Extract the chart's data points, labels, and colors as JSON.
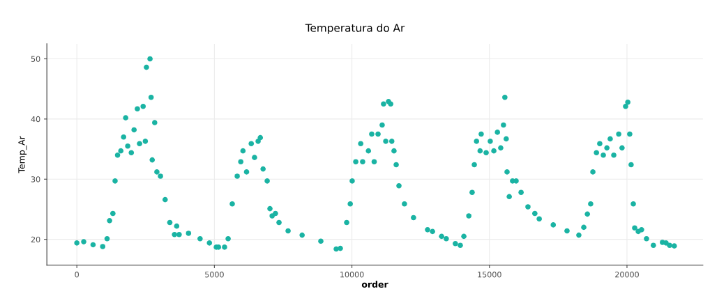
{
  "chart_data": {
    "type": "scatter",
    "title": "Temperatura do Ar",
    "xlabel": "order",
    "ylabel": "Temp_Ar",
    "xlim": [
      -1090,
      22760
    ],
    "ylim": [
      15.7,
      52.5
    ],
    "xticks": [
      0,
      5000,
      10000,
      15000,
      20000
    ],
    "yticks": [
      20,
      30,
      40,
      50
    ],
    "grid": true,
    "marker": "circle",
    "series": [
      {
        "color": "#1ab3a3",
        "x": [
          0,
          250,
          590,
          940,
          1100,
          1190,
          1310,
          1390,
          1480,
          1600,
          1700,
          1775,
          1850,
          1980,
          2080,
          2200,
          2280,
          2410,
          2490,
          2530,
          2660,
          2700,
          2740,
          2830,
          2910,
          3040,
          3210,
          3380,
          3550,
          3630,
          3720,
          4060,
          4480,
          4820,
          5070,
          5150,
          5370,
          5500,
          5650,
          5830,
          5960,
          6040,
          6170,
          6340,
          6460,
          6590,
          6670,
          6770,
          6920,
          7020,
          7100,
          7220,
          7350,
          7680,
          8190,
          8870,
          9430,
          9580,
          9810,
          9940,
          10010,
          10140,
          10320,
          10390,
          10600,
          10720,
          10810,
          10950,
          11100,
          11150,
          11230,
          11330,
          11410,
          11450,
          11530,
          11610,
          11710,
          11910,
          12240,
          12750,
          12930,
          13260,
          13430,
          13760,
          13940,
          14070,
          14250,
          14370,
          14450,
          14530,
          14660,
          14700,
          14880,
          15030,
          15160,
          15290,
          15410,
          15510,
          15560,
          15610,
          15640,
          15720,
          15840,
          15970,
          16150,
          16400,
          16650,
          16810,
          17320,
          17820,
          18250,
          18430,
          18560,
          18680,
          18760,
          18890,
          19010,
          19140,
          19270,
          19390,
          19520,
          19700,
          19820,
          19950,
          20030,
          20100,
          20150,
          20230,
          20280,
          20410,
          20530,
          20710,
          20960,
          21290,
          21420,
          21550,
          21720
        ],
        "values": [
          19.4,
          19.6,
          19.1,
          18.8,
          20.1,
          23.1,
          24.3,
          29.7,
          34.0,
          34.7,
          37.0,
          40.2,
          35.5,
          34.4,
          38.2,
          41.7,
          35.9,
          42.1,
          36.3,
          48.6,
          50.0,
          43.6,
          33.2,
          39.4,
          31.2,
          30.5,
          26.6,
          22.8,
          20.8,
          22.2,
          20.8,
          21.0,
          20.1,
          19.4,
          18.7,
          18.7,
          18.7,
          20.1,
          25.9,
          30.5,
          32.9,
          34.7,
          31.2,
          35.9,
          33.6,
          36.3,
          36.9,
          31.7,
          29.7,
          25.1,
          23.9,
          24.3,
          22.8,
          21.4,
          20.7,
          19.7,
          18.4,
          18.5,
          22.8,
          25.9,
          29.7,
          32.9,
          35.9,
          32.9,
          34.7,
          37.5,
          32.9,
          37.5,
          39.0,
          42.5,
          36.3,
          42.9,
          42.5,
          36.3,
          34.7,
          32.4,
          28.9,
          25.9,
          23.6,
          21.6,
          21.3,
          20.5,
          20.1,
          19.3,
          19.0,
          20.5,
          23.9,
          27.8,
          32.4,
          36.3,
          34.7,
          37.5,
          34.4,
          36.3,
          34.7,
          37.8,
          35.2,
          39.0,
          43.6,
          36.7,
          31.2,
          27.1,
          29.7,
          29.7,
          27.8,
          25.4,
          24.3,
          23.4,
          22.4,
          21.4,
          20.7,
          22.0,
          24.2,
          25.9,
          31.2,
          34.4,
          35.9,
          34.0,
          35.2,
          36.7,
          34.0,
          37.5,
          35.2,
          42.1,
          42.8,
          37.5,
          32.4,
          25.9,
          21.9,
          21.3,
          21.6,
          20.1,
          19.0,
          19.5,
          19.4,
          19.0,
          18.9
        ]
      }
    ]
  }
}
